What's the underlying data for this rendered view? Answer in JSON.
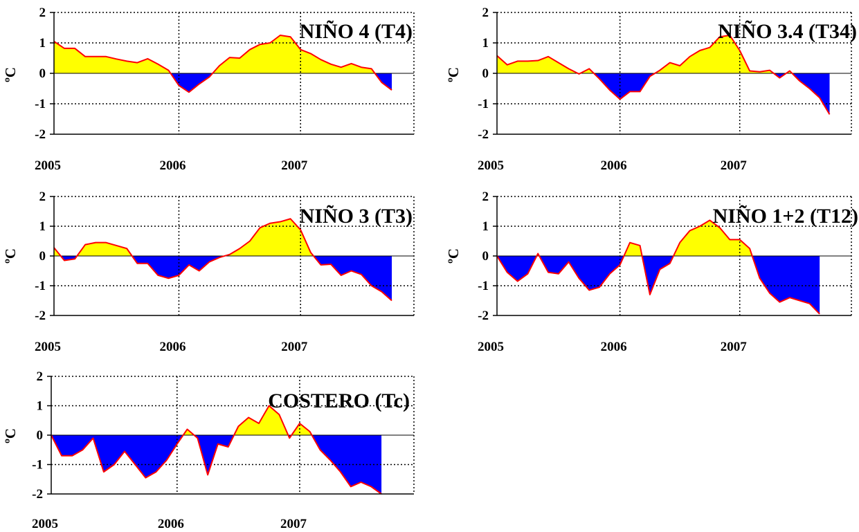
{
  "colors": {
    "positive": "#ffff00",
    "negative": "#0000ff",
    "line": "#ff0000",
    "axis": "#000000",
    "grid": "#000000"
  },
  "chart_data": [
    {
      "type": "area",
      "title": "NIÑO 4 (T4)",
      "ylabel": "ºC",
      "ylim": [
        -2,
        2
      ],
      "yticks": [
        "2",
        "1",
        "0",
        "-1",
        "-2"
      ],
      "xlim": [
        2005,
        2007.83
      ],
      "xticks": [
        "2005",
        "2006",
        "2007"
      ],
      "grid": "dotted at 2006, 2007 and y = 1, -1",
      "x": [
        2005.0,
        2005.083,
        2005.167,
        2005.25,
        2005.333,
        2005.417,
        2005.5,
        2005.583,
        2005.667,
        2005.75,
        2005.833,
        2005.917,
        2006.0,
        2006.083,
        2006.167,
        2006.25,
        2006.333,
        2006.417,
        2006.5,
        2006.583,
        2006.667,
        2006.75,
        2006.833,
        2006.917,
        2007.0,
        2007.083,
        2007.167,
        2007.25,
        2007.333,
        2007.417,
        2007.5,
        2007.583,
        2007.667,
        2007.75
      ],
      "y": [
        1.05,
        0.82,
        0.82,
        0.55,
        0.55,
        0.55,
        0.47,
        0.4,
        0.35,
        0.48,
        0.3,
        0.1,
        -0.4,
        -0.62,
        -0.35,
        -0.12,
        0.25,
        0.52,
        0.5,
        0.78,
        0.95,
        1.0,
        1.25,
        1.2,
        0.78,
        0.65,
        0.45,
        0.3,
        0.2,
        0.32,
        0.2,
        0.15,
        -0.3,
        -0.55
      ]
    },
    {
      "type": "area",
      "title": "NIÑO 3.4 (T34)",
      "ylabel": "ºC",
      "ylim": [
        -2,
        2
      ],
      "yticks": [
        "2",
        "1",
        "0",
        "-1",
        "-2"
      ],
      "xlim": [
        2005,
        2007.83
      ],
      "xticks": [
        "2005",
        "2006",
        "2007"
      ],
      "grid": "dotted at 2006, 2007 and y = 1, -1",
      "x": [
        2005.0,
        2005.083,
        2005.167,
        2005.25,
        2005.333,
        2005.417,
        2005.5,
        2005.583,
        2005.667,
        2005.75,
        2005.833,
        2005.917,
        2006.0,
        2006.083,
        2006.167,
        2006.25,
        2006.333,
        2006.417,
        2006.5,
        2006.583,
        2006.667,
        2006.75,
        2006.833,
        2006.917,
        2007.0,
        2007.083,
        2007.167,
        2007.25,
        2007.333,
        2007.417,
        2007.5,
        2007.583,
        2007.667,
        2007.75
      ],
      "y": [
        0.58,
        0.28,
        0.4,
        0.4,
        0.42,
        0.55,
        0.35,
        0.15,
        -0.02,
        0.15,
        -0.18,
        -0.55,
        -0.85,
        -0.6,
        -0.6,
        -0.1,
        0.1,
        0.35,
        0.25,
        0.55,
        0.75,
        0.85,
        1.2,
        1.25,
        0.75,
        0.08,
        0.05,
        0.1,
        -0.15,
        0.08,
        -0.25,
        -0.5,
        -0.8,
        -1.35
      ]
    },
    {
      "type": "area",
      "title": "NIÑO 3 (T3)",
      "ylabel": "ºC",
      "ylim": [
        -2,
        2
      ],
      "yticks": [
        "2",
        "1",
        "0",
        "-1",
        "-2"
      ],
      "xlim": [
        2005,
        2007.83
      ],
      "xticks": [
        "2005",
        "2006",
        "2007"
      ],
      "grid": "dotted at 2006, 2007 and y = 1, -1",
      "x": [
        2005.0,
        2005.083,
        2005.167,
        2005.25,
        2005.333,
        2005.417,
        2005.5,
        2005.583,
        2005.667,
        2005.75,
        2005.833,
        2005.917,
        2006.0,
        2006.083,
        2006.167,
        2006.25,
        2006.333,
        2006.417,
        2006.5,
        2006.583,
        2006.667,
        2006.75,
        2006.833,
        2006.917,
        2007.0,
        2007.083,
        2007.167,
        2007.25,
        2007.333,
        2007.417,
        2007.5,
        2007.583,
        2007.667,
        2007.75
      ],
      "y": [
        0.28,
        -0.15,
        -0.1,
        0.38,
        0.45,
        0.45,
        0.35,
        0.25,
        -0.25,
        -0.25,
        -0.65,
        -0.75,
        -0.65,
        -0.3,
        -0.5,
        -0.2,
        -0.05,
        0.05,
        0.25,
        0.5,
        0.95,
        1.1,
        1.15,
        1.25,
        0.88,
        0.12,
        -0.3,
        -0.28,
        -0.65,
        -0.5,
        -0.62,
        -1.0,
        -1.2,
        -1.5
      ]
    },
    {
      "type": "area",
      "title": "NIÑO 1+2 (T12)",
      "ylabel": "ºC",
      "ylim": [
        -2,
        2
      ],
      "yticks": [
        "2",
        "1",
        "0",
        "-1",
        "-2"
      ],
      "xlim": [
        2005,
        2007.83
      ],
      "xticks": [
        "2005",
        "2006",
        "2007"
      ],
      "grid": "dotted at 2006, 2007 and y = 1, -1",
      "x": [
        2005.0,
        2005.083,
        2005.167,
        2005.25,
        2005.333,
        2005.417,
        2005.5,
        2005.583,
        2005.667,
        2005.75,
        2005.833,
        2005.917,
        2006.0,
        2006.083,
        2006.167,
        2006.25,
        2006.333,
        2006.417,
        2006.5,
        2006.583,
        2006.667,
        2006.75,
        2006.833,
        2006.917,
        2007.0,
        2007.083,
        2007.167,
        2007.25,
        2007.333,
        2007.417,
        2007.5,
        2007.583,
        2007.667
      ],
      "y": [
        0.0,
        -0.55,
        -0.85,
        -0.6,
        0.08,
        -0.55,
        -0.6,
        -0.2,
        -0.75,
        -1.15,
        -1.05,
        -0.6,
        -0.3,
        0.45,
        0.35,
        -1.3,
        -0.45,
        -0.25,
        0.45,
        0.85,
        1.0,
        1.2,
        0.95,
        0.55,
        0.55,
        0.25,
        -0.75,
        -1.25,
        -1.55,
        -1.4,
        -1.5,
        -1.6,
        -1.95
      ]
    },
    {
      "type": "area",
      "title": "COSTERO (Tc)",
      "ylabel": "ºC",
      "ylim": [
        -2,
        2
      ],
      "yticks": [
        "2",
        "1",
        "0",
        "-1",
        "-2"
      ],
      "xlim": [
        2005,
        2007.83
      ],
      "xticks": [
        "2005",
        "2006",
        "2007"
      ],
      "grid": "dotted at 2006, 2007 and y = 1, -1",
      "x": [
        2005.0,
        2005.083,
        2005.167,
        2005.25,
        2005.333,
        2005.417,
        2005.5,
        2005.583,
        2005.667,
        2005.75,
        2005.833,
        2005.917,
        2006.0,
        2006.083,
        2006.167,
        2006.25,
        2006.333,
        2006.417,
        2006.5,
        2006.583,
        2006.667,
        2006.75,
        2006.833,
        2006.917,
        2007.0,
        2007.083,
        2007.167,
        2007.25,
        2007.333,
        2007.417,
        2007.5,
        2007.583,
        2007.667
      ],
      "y": [
        0.0,
        -0.7,
        -0.7,
        -0.5,
        -0.1,
        -1.25,
        -1.0,
        -0.55,
        -1.0,
        -1.45,
        -1.25,
        -0.85,
        -0.3,
        0.2,
        -0.1,
        -1.35,
        -0.3,
        -0.4,
        0.3,
        0.6,
        0.4,
        1.0,
        0.7,
        -0.1,
        0.4,
        0.12,
        -0.5,
        -0.85,
        -1.25,
        -1.75,
        -1.6,
        -1.75,
        -2.0
      ]
    }
  ]
}
